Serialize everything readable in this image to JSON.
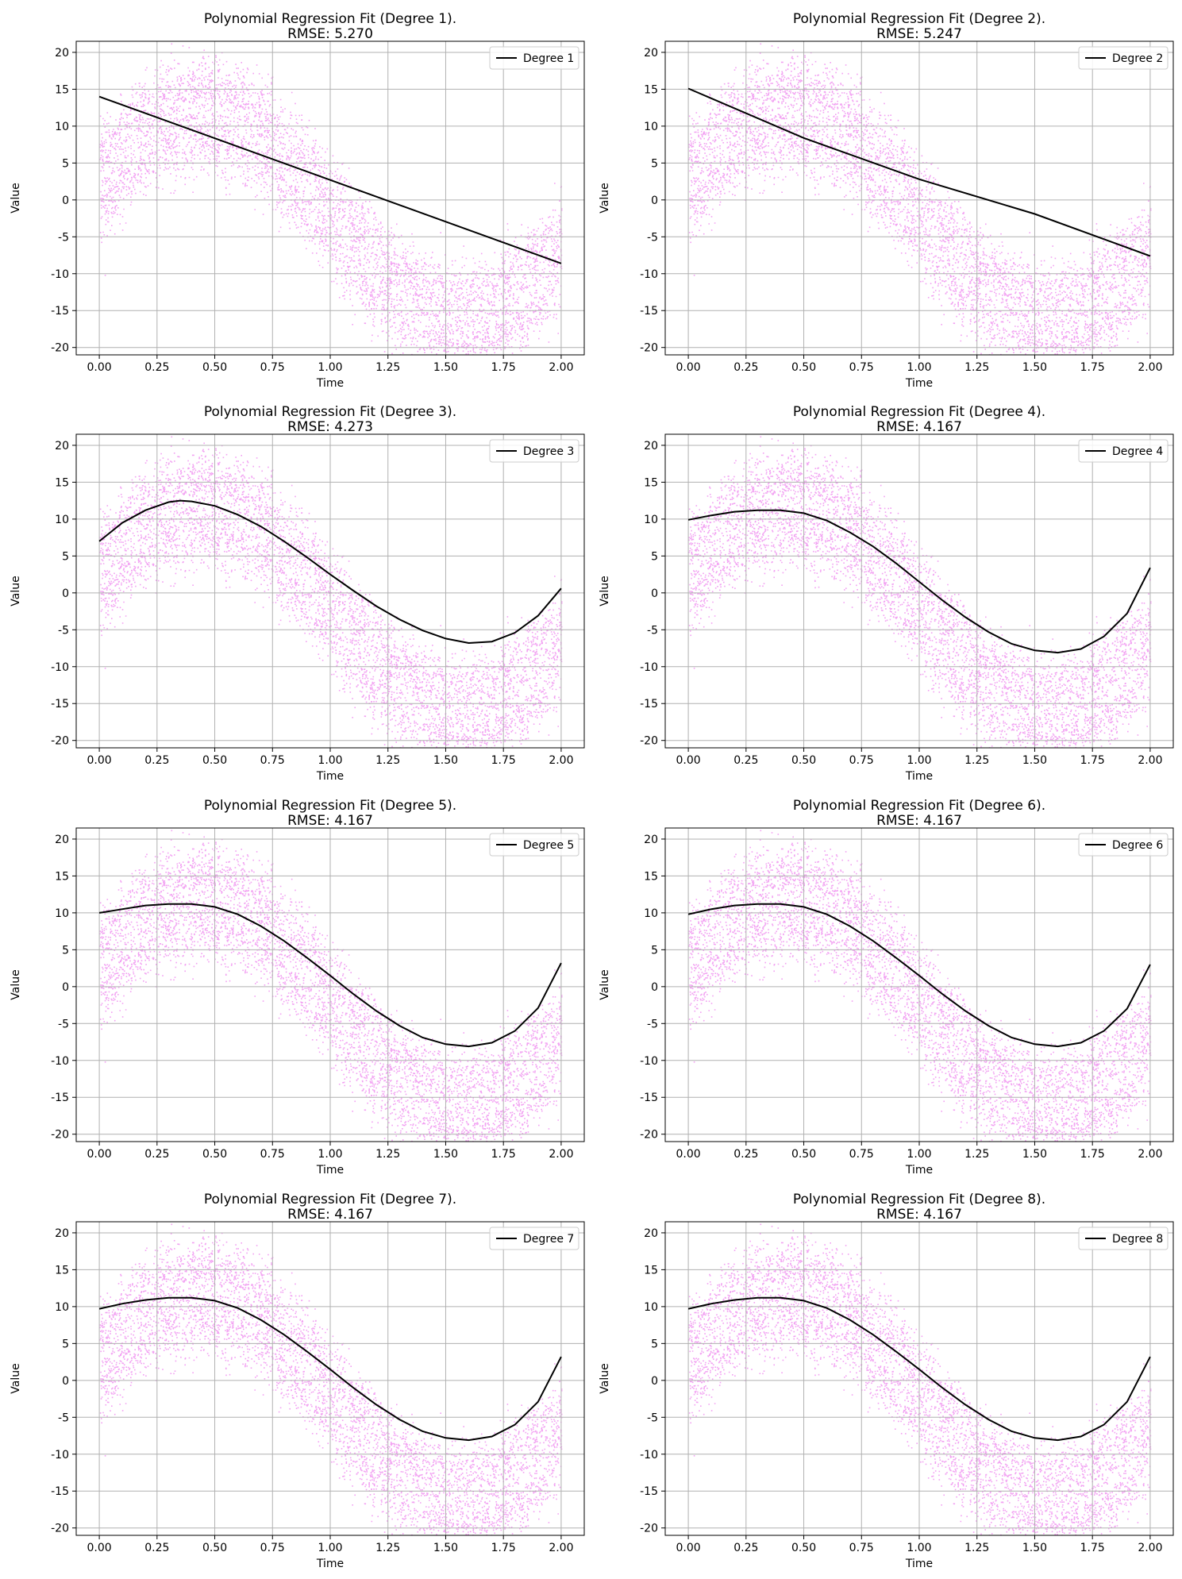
{
  "figure": {
    "background": "#ffffff",
    "scatter_color": "#ee82ee",
    "fit_color": "#000000",
    "grid": true
  },
  "chart_data": [
    {
      "type": "scatter",
      "title_line1": "Polynomial Regression Fit (Degree 1).",
      "title_line2": "RMSE: 5.270",
      "xlabel": "Time",
      "ylabel": "Value",
      "legend": "Degree 1",
      "legend_position": "top-right",
      "xlim": [
        -0.1,
        2.1
      ],
      "ylim": [
        -21,
        21.5
      ],
      "xticks": [
        "0.00",
        "0.25",
        "0.50",
        "0.75",
        "1.00",
        "1.25",
        "1.50",
        "1.75",
        "2.00"
      ],
      "yticks": [
        "20",
        "15",
        "10",
        "5",
        "0",
        "-5",
        "-10",
        "-15",
        "-20"
      ],
      "fit": {
        "x": [
          0,
          2
        ],
        "y": [
          14.0,
          -8.6
        ]
      }
    },
    {
      "type": "scatter",
      "title_line1": "Polynomial Regression Fit (Degree 2).",
      "title_line2": "RMSE: 5.247",
      "xlabel": "Time",
      "ylabel": "Value",
      "legend": "Degree 2",
      "legend_position": "top-right",
      "xlim": [
        -0.1,
        2.1
      ],
      "ylim": [
        -21,
        21.5
      ],
      "xticks": [
        "0.00",
        "0.25",
        "0.50",
        "0.75",
        "1.00",
        "1.25",
        "1.50",
        "1.75",
        "2.00"
      ],
      "yticks": [
        "20",
        "15",
        "10",
        "5",
        "0",
        "-5",
        "-10",
        "-15",
        "-20"
      ],
      "fit": {
        "x": [
          0,
          0.5,
          1.0,
          1.5,
          2.0
        ],
        "y": [
          15.1,
          8.4,
          2.8,
          -1.9,
          -7.6
        ]
      }
    },
    {
      "type": "scatter",
      "title_line1": "Polynomial Regression Fit (Degree 3).",
      "title_line2": "RMSE: 4.273",
      "xlabel": "Time",
      "ylabel": "Value",
      "legend": "Degree 3",
      "legend_position": "top-right",
      "xlim": [
        -0.1,
        2.1
      ],
      "ylim": [
        -21,
        21.5
      ],
      "xticks": [
        "0.00",
        "0.25",
        "0.50",
        "0.75",
        "1.00",
        "1.25",
        "1.50",
        "1.75",
        "2.00"
      ],
      "yticks": [
        "20",
        "15",
        "10",
        "5",
        "0",
        "-5",
        "-10",
        "-15",
        "-20"
      ],
      "fit": {
        "x": [
          0,
          0.1,
          0.2,
          0.3,
          0.35,
          0.4,
          0.5,
          0.6,
          0.7,
          0.8,
          0.9,
          1.0,
          1.1,
          1.2,
          1.3,
          1.4,
          1.5,
          1.6,
          1.7,
          1.8,
          1.9,
          2.0
        ],
        "y": [
          7.0,
          9.5,
          11.2,
          12.3,
          12.5,
          12.4,
          11.8,
          10.6,
          9.0,
          7.0,
          4.8,
          2.5,
          0.3,
          -1.8,
          -3.6,
          -5.1,
          -6.2,
          -6.8,
          -6.6,
          -5.4,
          -3.1,
          0.6
        ]
      }
    },
    {
      "type": "scatter",
      "title_line1": "Polynomial Regression Fit (Degree 4).",
      "title_line2": "RMSE: 4.167",
      "xlabel": "Time",
      "ylabel": "Value",
      "legend": "Degree 4",
      "legend_position": "top-right",
      "xlim": [
        -0.1,
        2.1
      ],
      "ylim": [
        -21,
        21.5
      ],
      "xticks": [
        "0.00",
        "0.25",
        "0.50",
        "0.75",
        "1.00",
        "1.25",
        "1.50",
        "1.75",
        "2.00"
      ],
      "yticks": [
        "20",
        "15",
        "10",
        "5",
        "0",
        "-5",
        "-10",
        "-15",
        "-20"
      ],
      "fit": {
        "x": [
          0,
          0.1,
          0.2,
          0.3,
          0.4,
          0.5,
          0.6,
          0.7,
          0.8,
          0.9,
          1.0,
          1.1,
          1.2,
          1.3,
          1.4,
          1.5,
          1.6,
          1.7,
          1.8,
          1.9,
          2.0
        ],
        "y": [
          9.9,
          10.5,
          11.0,
          11.2,
          11.2,
          10.8,
          9.8,
          8.2,
          6.3,
          4.0,
          1.5,
          -1.0,
          -3.3,
          -5.3,
          -6.9,
          -7.8,
          -8.1,
          -7.6,
          -5.9,
          -2.8,
          3.4
        ]
      }
    },
    {
      "type": "scatter",
      "title_line1": "Polynomial Regression Fit (Degree 5).",
      "title_line2": "RMSE: 4.167",
      "xlabel": "Time",
      "ylabel": "Value",
      "legend": "Degree 5",
      "legend_position": "top-right",
      "xlim": [
        -0.1,
        2.1
      ],
      "ylim": [
        -21,
        21.5
      ],
      "xticks": [
        "0.00",
        "0.25",
        "0.50",
        "0.75",
        "1.00",
        "1.25",
        "1.50",
        "1.75",
        "2.00"
      ],
      "yticks": [
        "20",
        "15",
        "10",
        "5",
        "0",
        "-5",
        "-10",
        "-15",
        "-20"
      ],
      "fit": {
        "x": [
          0,
          0.1,
          0.2,
          0.3,
          0.4,
          0.5,
          0.6,
          0.7,
          0.8,
          0.9,
          1.0,
          1.1,
          1.2,
          1.3,
          1.4,
          1.5,
          1.6,
          1.7,
          1.8,
          1.9,
          2.0
        ],
        "y": [
          10.0,
          10.5,
          11.0,
          11.2,
          11.2,
          10.8,
          9.8,
          8.2,
          6.2,
          3.9,
          1.5,
          -1.0,
          -3.3,
          -5.3,
          -6.9,
          -7.8,
          -8.1,
          -7.6,
          -6.0,
          -2.9,
          3.2
        ]
      }
    },
    {
      "type": "scatter",
      "title_line1": "Polynomial Regression Fit (Degree 6).",
      "title_line2": "RMSE: 4.167",
      "xlabel": "Time",
      "ylabel": "Value",
      "legend": "Degree 6",
      "legend_position": "top-right",
      "xlim": [
        -0.1,
        2.1
      ],
      "ylim": [
        -21,
        21.5
      ],
      "xticks": [
        "0.00",
        "0.25",
        "0.50",
        "0.75",
        "1.00",
        "1.25",
        "1.50",
        "1.75",
        "2.00"
      ],
      "yticks": [
        "20",
        "15",
        "10",
        "5",
        "0",
        "-5",
        "-10",
        "-15",
        "-20"
      ],
      "fit": {
        "x": [
          0,
          0.1,
          0.2,
          0.3,
          0.4,
          0.5,
          0.6,
          0.7,
          0.8,
          0.9,
          1.0,
          1.1,
          1.2,
          1.3,
          1.4,
          1.5,
          1.6,
          1.7,
          1.8,
          1.9,
          2.0
        ],
        "y": [
          9.8,
          10.5,
          11.0,
          11.2,
          11.2,
          10.8,
          9.8,
          8.2,
          6.2,
          3.9,
          1.5,
          -1.0,
          -3.3,
          -5.3,
          -6.9,
          -7.8,
          -8.1,
          -7.6,
          -6.0,
          -3.0,
          3.0
        ]
      }
    },
    {
      "type": "scatter",
      "title_line1": "Polynomial Regression Fit (Degree 7).",
      "title_line2": "RMSE: 4.167",
      "xlabel": "Time",
      "ylabel": "Value",
      "legend": "Degree 7",
      "legend_position": "top-right",
      "xlim": [
        -0.1,
        2.1
      ],
      "ylim": [
        -21,
        21.5
      ],
      "xticks": [
        "0.00",
        "0.25",
        "0.50",
        "0.75",
        "1.00",
        "1.25",
        "1.50",
        "1.75",
        "2.00"
      ],
      "yticks": [
        "20",
        "15",
        "10",
        "5",
        "0",
        "-5",
        "-10",
        "-15",
        "-20"
      ],
      "fit": {
        "x": [
          0,
          0.1,
          0.2,
          0.3,
          0.4,
          0.5,
          0.6,
          0.7,
          0.8,
          0.9,
          1.0,
          1.1,
          1.2,
          1.3,
          1.4,
          1.5,
          1.6,
          1.7,
          1.8,
          1.9,
          2.0
        ],
        "y": [
          9.7,
          10.4,
          10.9,
          11.2,
          11.2,
          10.8,
          9.8,
          8.2,
          6.2,
          3.9,
          1.5,
          -1.0,
          -3.3,
          -5.3,
          -6.9,
          -7.8,
          -8.1,
          -7.6,
          -6.0,
          -2.9,
          3.2
        ]
      }
    },
    {
      "type": "scatter",
      "title_line1": "Polynomial Regression Fit (Degree 8).",
      "title_line2": "RMSE: 4.167",
      "xlabel": "Time",
      "ylabel": "Value",
      "legend": "Degree 8",
      "legend_position": "top-right",
      "xlim": [
        -0.1,
        2.1
      ],
      "ylim": [
        -21,
        21.5
      ],
      "xticks": [
        "0.00",
        "0.25",
        "0.50",
        "0.75",
        "1.00",
        "1.25",
        "1.50",
        "1.75",
        "2.00"
      ],
      "yticks": [
        "20",
        "15",
        "10",
        "5",
        "0",
        "-5",
        "-10",
        "-15",
        "-20"
      ],
      "fit": {
        "x": [
          0,
          0.1,
          0.2,
          0.3,
          0.4,
          0.5,
          0.6,
          0.7,
          0.8,
          0.9,
          1.0,
          1.1,
          1.2,
          1.3,
          1.4,
          1.5,
          1.6,
          1.7,
          1.8,
          1.9,
          2.0
        ],
        "y": [
          9.7,
          10.4,
          10.9,
          11.2,
          11.2,
          10.8,
          9.8,
          8.2,
          6.2,
          3.9,
          1.5,
          -1.0,
          -3.3,
          -5.3,
          -6.9,
          -7.8,
          -8.1,
          -7.6,
          -6.0,
          -2.9,
          3.2
        ]
      }
    }
  ]
}
